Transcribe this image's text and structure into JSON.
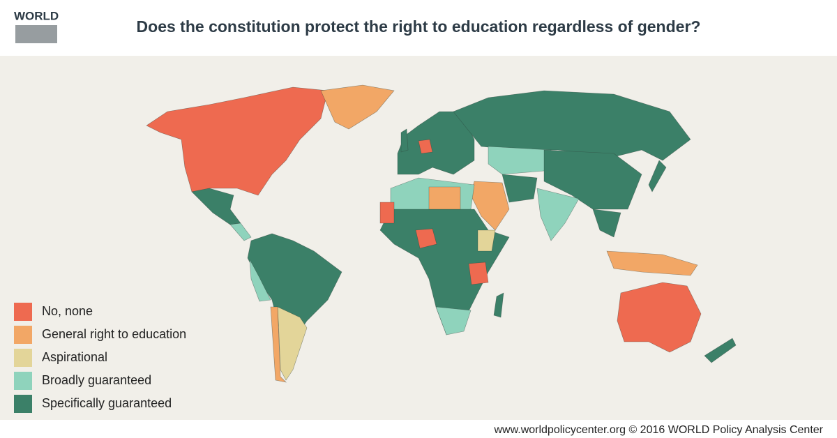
{
  "header": {
    "logo": "WORLD",
    "title": "Does the constitution protect the right to education regardless of gender?"
  },
  "legend": [
    {
      "label": "No, none",
      "color": "#ee6a50"
    },
    {
      "label": "General right to education",
      "color": "#f2a766"
    },
    {
      "label": "Aspirational",
      "color": "#e3d599"
    },
    {
      "label": "Broadly guaranteed",
      "color": "#8fd3bc"
    },
    {
      "label": "Specifically guaranteed",
      "color": "#3b8068"
    }
  ],
  "footer": "www.worldpolicycenter.org © 2016 WORLD Policy Analysis Center"
}
